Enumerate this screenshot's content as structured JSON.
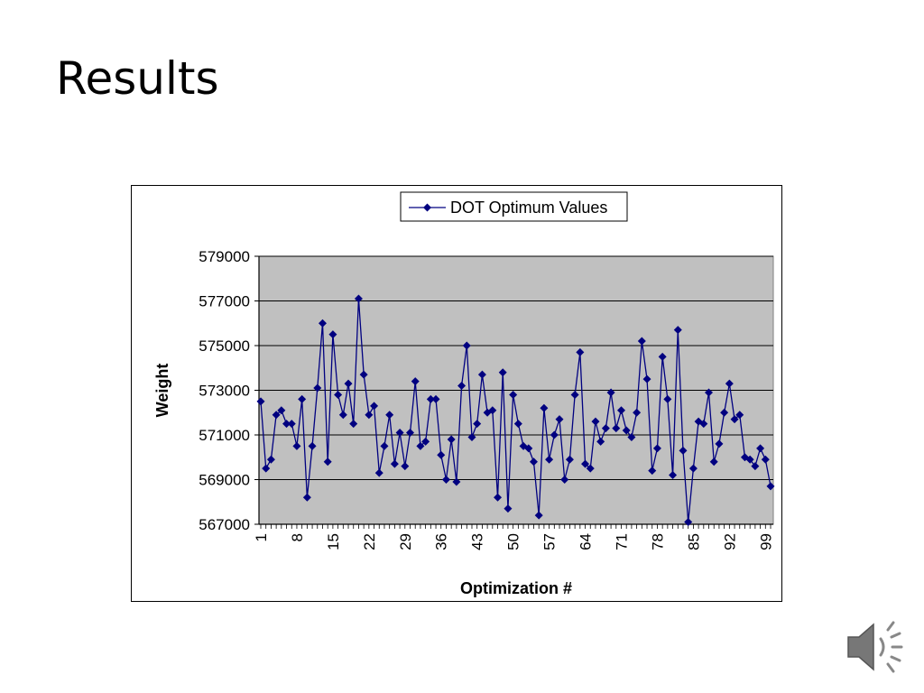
{
  "slide": {
    "title": "Results"
  },
  "colors": {
    "series": "#000080",
    "plot_bg": "#c0c0c0",
    "grid": "#000000",
    "speaker": "#777777"
  },
  "icons": {
    "audio": "speaker-icon"
  },
  "chart_data": {
    "type": "line",
    "title": "",
    "xlabel": "Optimization #",
    "ylabel": "Weight",
    "ylim": [
      567000,
      579000
    ],
    "ytick_step": 2000,
    "yticks": [
      "567000",
      "569000",
      "571000",
      "573000",
      "575000",
      "577000",
      "579000"
    ],
    "xticks": [
      "1",
      "8",
      "15",
      "22",
      "29",
      "36",
      "43",
      "50",
      "57",
      "64",
      "71",
      "78",
      "85",
      "92",
      "99"
    ],
    "grid": true,
    "legend": "top-center",
    "series": [
      {
        "name": "DOT Optimum Values",
        "marker": "diamond",
        "x": [
          1,
          2,
          3,
          4,
          5,
          6,
          7,
          8,
          9,
          10,
          11,
          12,
          13,
          14,
          15,
          16,
          17,
          18,
          19,
          20,
          21,
          22,
          23,
          24,
          25,
          26,
          27,
          28,
          29,
          30,
          31,
          32,
          33,
          34,
          35,
          36,
          37,
          38,
          39,
          40,
          41,
          42,
          43,
          44,
          45,
          46,
          47,
          48,
          49,
          50,
          51,
          52,
          53,
          54,
          55,
          56,
          57,
          58,
          59,
          60,
          61,
          62,
          63,
          64,
          65,
          66,
          67,
          68,
          69,
          70,
          71,
          72,
          73,
          74,
          75,
          76,
          77,
          78,
          79,
          80,
          81,
          82,
          83,
          84,
          85,
          86,
          87,
          88,
          89,
          90,
          91,
          92,
          93,
          94,
          95,
          96,
          97,
          98,
          99,
          100
        ],
        "values": [
          572500,
          569500,
          569900,
          571900,
          572100,
          571500,
          571500,
          570500,
          572600,
          568200,
          570500,
          573100,
          576000,
          569800,
          575500,
          572800,
          571900,
          573300,
          571500,
          577100,
          573700,
          571900,
          572300,
          569300,
          570500,
          571900,
          569700,
          571100,
          569600,
          571100,
          573400,
          570500,
          570700,
          572600,
          572600,
          570100,
          569000,
          570800,
          568900,
          573200,
          575000,
          570900,
          571500,
          573700,
          572000,
          572100,
          568200,
          573800,
          567700,
          572800,
          571500,
          570500,
          570400,
          569800,
          567400,
          572200,
          569900,
          571000,
          571700,
          569000,
          569900,
          572800,
          574700,
          569700,
          569500,
          571600,
          570700,
          571300,
          572900,
          571300,
          572100,
          571200,
          570900,
          572000,
          575200,
          573500,
          569400,
          570400,
          574500,
          572600,
          569200,
          575700,
          570300,
          567100,
          569500,
          571600,
          571500,
          572900,
          569800,
          570600,
          572000,
          573300,
          571700,
          571900,
          570000,
          569900,
          569600,
          570400,
          569900,
          568700
        ]
      }
    ]
  }
}
